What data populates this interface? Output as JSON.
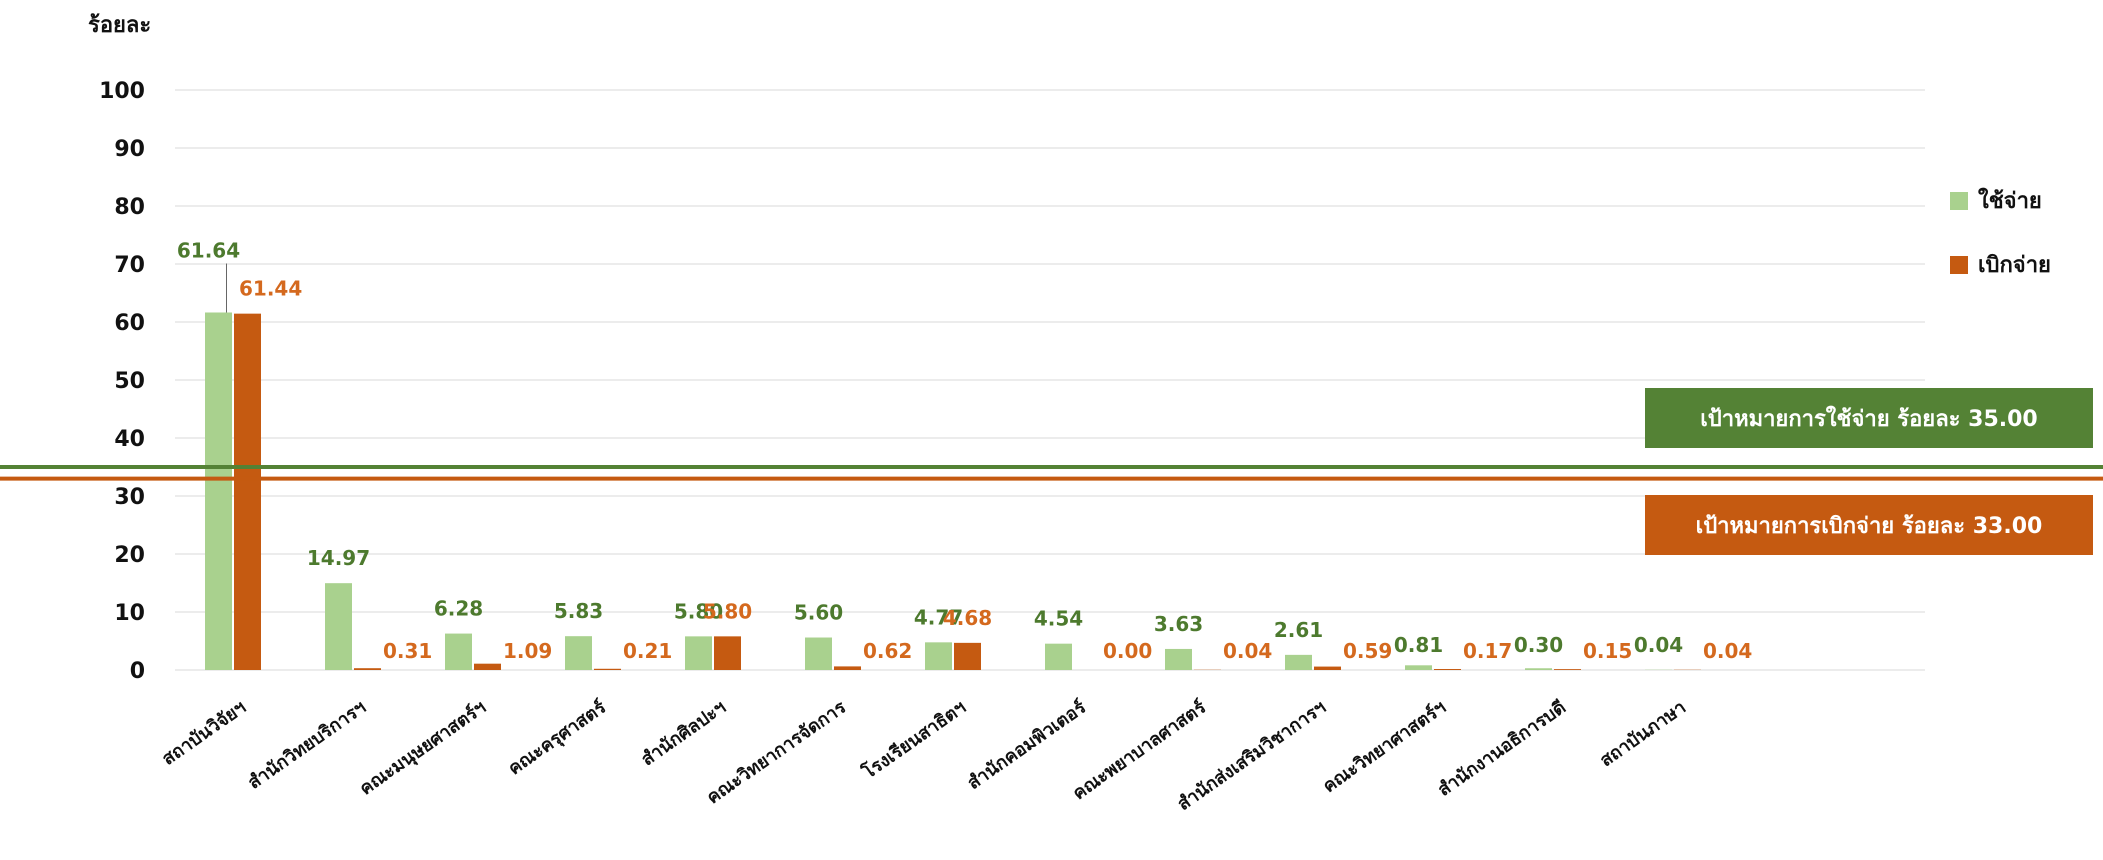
{
  "chart_data": {
    "type": "bar",
    "ylabel": "ร้อยละ",
    "ylim": [
      0,
      100
    ],
    "yticks": [
      0,
      10,
      20,
      30,
      40,
      50,
      60,
      70,
      80,
      90,
      100
    ],
    "categories": [
      "สถาบันวิจัยฯ",
      "สำนักวิทยบริการฯ",
      "คณะมนุษยศาสตร์ฯ",
      "คณะครุศาสตร์",
      "สำนักศิลปะฯ",
      "คณะวิทยาการจัดการ",
      "โรงเรียนสาธิตฯ",
      "สำนักคอมพิวเตอร์",
      "คณะพยาบาลศาสตร์",
      "สำนักส่งเสริมวิชาการฯ",
      "คณะวิทยาศาสตร์ฯ",
      "สำนักงานอธิการบดี",
      "สถาบันภาษา"
    ],
    "series": [
      {
        "name": "ใช้จ่าย",
        "color": "#a9d18e",
        "label_color": "#4d7a2e",
        "values": [
          61.64,
          14.97,
          6.28,
          5.83,
          5.8,
          5.6,
          4.77,
          4.54,
          3.63,
          2.61,
          0.81,
          0.3,
          0.04
        ],
        "labels": [
          "61.64",
          "14.97",
          "6.28",
          "5.83",
          "5.80",
          "5.60",
          "4.77",
          "4.54",
          "3.63",
          "2.61",
          "0.81",
          "0.30",
          "0.04"
        ]
      },
      {
        "name": "เบิกจ่าย",
        "color": "#c55a11",
        "label_color": "#d4691e",
        "values": [
          61.44,
          0.31,
          1.09,
          0.21,
          5.8,
          0.62,
          4.68,
          0.0,
          0.04,
          0.59,
          0.17,
          0.15,
          0.04
        ],
        "labels": [
          "61.44",
          "0.31",
          "1.09",
          "0.21",
          "5.80",
          "0.62",
          "4.68",
          "0.00",
          "0.04",
          "0.59",
          "0.17",
          "0.15",
          "0.04"
        ]
      }
    ],
    "targets": [
      {
        "label": "เป้าหมายการใช้จ่าย ร้อยละ 35.00",
        "value": 35.0,
        "color": "#548235"
      },
      {
        "label": "เป้าหมายการเบิกจ่าย ร้อยละ 33.00",
        "value": 33.0,
        "color": "#c55a11"
      }
    ],
    "legend_position": "right",
    "grid": true
  }
}
